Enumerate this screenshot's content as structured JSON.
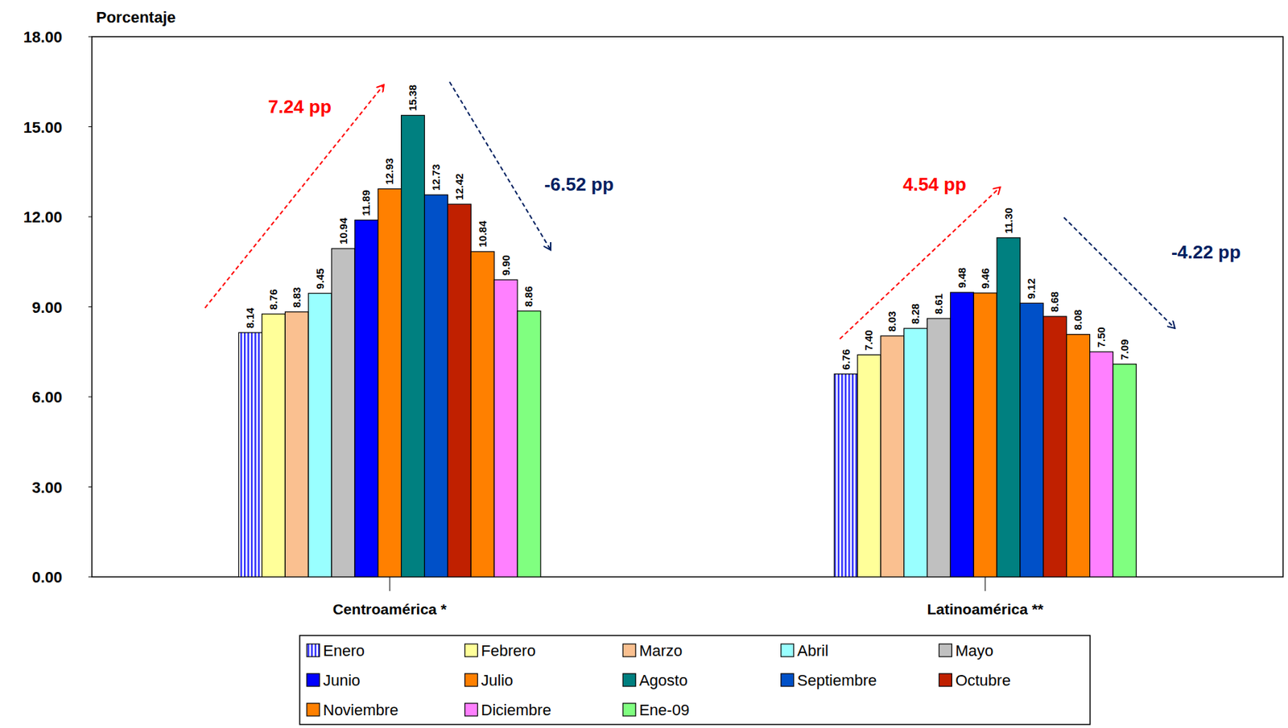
{
  "chart_data": {
    "type": "bar",
    "y_label": "Porcentaje",
    "categories": [
      "Centroamérica *",
      "Latinoamérica **"
    ],
    "series": [
      {
        "name": "Enero",
        "color": "#3333ff",
        "values": [
          8.14,
          6.76
        ]
      },
      {
        "name": "Febrero",
        "color": "#ffff99",
        "values": [
          8.76,
          7.4
        ],
        "value_labels": [
          "8.76",
          "7.40"
        ]
      },
      {
        "name": "Marzo",
        "color": "#fac090",
        "values": [
          8.83,
          8.03
        ]
      },
      {
        "name": "Abril",
        "color": "#99ffff",
        "values": [
          9.45,
          8.28
        ]
      },
      {
        "name": "Mayo",
        "color": "#c0c0c0",
        "values": [
          10.94,
          8.61
        ]
      },
      {
        "name": "Junio",
        "color": "#0000ff",
        "values": [
          11.89,
          9.48
        ]
      },
      {
        "name": "Julio",
        "color": "#ff8000",
        "values": [
          12.93,
          9.46
        ]
      },
      {
        "name": "Agosto",
        "color": "#008080",
        "values": [
          15.38,
          11.3
        ],
        "value_labels": [
          "15.38",
          "11.30"
        ]
      },
      {
        "name": "Septiembre",
        "color": "#0050c8",
        "values": [
          12.73,
          9.12
        ]
      },
      {
        "name": "Octubre",
        "color": "#c02000",
        "values": [
          12.42,
          8.68
        ]
      },
      {
        "name": "Noviembre",
        "color": "#ff8000",
        "values": [
          10.84,
          8.08
        ]
      },
      {
        "name": "Diciembre",
        "color": "#ff80ff",
        "values": [
          9.9,
          7.5
        ],
        "value_labels": [
          "9.90",
          "7.50"
        ]
      },
      {
        "name": "Ene-09",
        "color": "#80ff80",
        "values": [
          8.86,
          7.09
        ]
      }
    ],
    "ylim": [
      0,
      18
    ],
    "yticks": [
      {
        "value": 0,
        "label": "0.00"
      },
      {
        "value": 3,
        "label": "3.00"
      },
      {
        "value": 6,
        "label": "6.00"
      },
      {
        "value": 9,
        "label": "9.00"
      },
      {
        "value": 12,
        "label": "12.00"
      },
      {
        "value": 15,
        "label": "15.00"
      },
      {
        "value": 18,
        "label": "18.00"
      }
    ],
    "annotations": [
      {
        "text": "7.24 pp",
        "color": "#ff0000"
      },
      {
        "text": "-6.52 pp",
        "color": "#002060"
      },
      {
        "text": "4.54 pp",
        "color": "#ff0000"
      },
      {
        "text": "-4.22 pp",
        "color": "#002060"
      }
    ],
    "grid": false,
    "legend": "bottom",
    "data_labels": true
  }
}
